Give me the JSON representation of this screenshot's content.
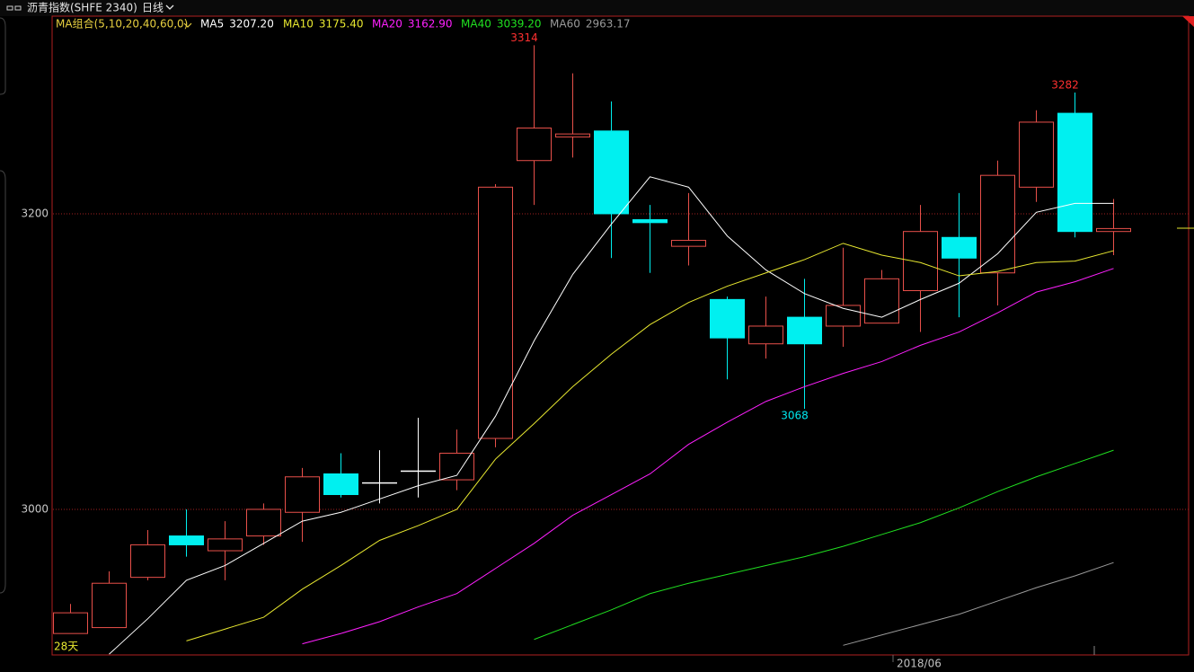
{
  "chart_data": {
    "type": "candlestick",
    "title": "沥青指数(SHFE 2340)",
    "period": "日线",
    "indicator": "MA组合(5,10,20,40,60,0)",
    "footnote": "28天",
    "categories": [
      null,
      null,
      null,
      null,
      null,
      null,
      null,
      null,
      null,
      null,
      null,
      null,
      null,
      null,
      null,
      null,
      null,
      null,
      null,
      null,
      null,
      null,
      "2018/06",
      null,
      null,
      null,
      null,
      null
    ],
    "open": [
      2916,
      2920,
      2954,
      2982,
      2972,
      2982,
      2998,
      3024,
      3018,
      3026,
      3020,
      3048,
      3236,
      3252,
      3256,
      3196,
      3178,
      3142,
      3112,
      3130,
      3124,
      3126,
      3148,
      3184,
      3160,
      3218,
      3268,
      3188
    ],
    "high": [
      2936,
      2958,
      2986,
      3000,
      2992,
      3004,
      3028,
      3038,
      3040,
      3062,
      3054,
      3220,
      3314,
      3295,
      3276,
      3206,
      3214,
      3144,
      3144,
      3156,
      3177,
      3162,
      3206,
      3214,
      3236,
      3270,
      3282,
      3210
    ],
    "low": [
      2916,
      2920,
      2952,
      2968,
      2952,
      2976,
      2978,
      3008,
      3004,
      3008,
      3013,
      3042,
      3206,
      3238,
      3170,
      3160,
      3165,
      3088,
      3102,
      3068,
      3110,
      3126,
      3120,
      3130,
      3138,
      3208,
      3184,
      3172
    ],
    "close": [
      2930,
      2950,
      2976,
      2976,
      2980,
      3000,
      3022,
      3010,
      3018,
      3026,
      3038,
      3218,
      3258,
      3254,
      3200,
      3194,
      3182,
      3116,
      3124,
      3112,
      3138,
      3156,
      3188,
      3170,
      3226,
      3262,
      3188,
      3190
    ],
    "up_color": "#e8504a",
    "down_color": "#00f0f0",
    "flat_color": "#ffffff",
    "ylim": [
      2901.5,
      3333.7
    ],
    "yticks": [
      3000,
      3200
    ],
    "grid": true,
    "series": [
      {
        "name": "MA5",
        "legend_label": "3207.20",
        "color": "#ffffff",
        "values": [
          null,
          2902,
          2926,
          2952,
          2962,
          2977,
          2992,
          2998,
          3007,
          3016,
          3023,
          3063,
          3114,
          3159,
          3193,
          3225,
          3218,
          3185,
          3162,
          3146,
          3136,
          3130,
          3142,
          3153,
          3173,
          3201,
          3207,
          3207
        ]
      },
      {
        "name": "MA10",
        "legend_label": "3175.40",
        "color": "#e8e830",
        "values": [
          null,
          null,
          null,
          2911,
          2919,
          2927,
          2946,
          2962,
          2979,
          2989,
          3000,
          3034,
          3058,
          3083,
          3105,
          3125,
          3140,
          3151,
          3160,
          3169,
          3180,
          3172,
          3167,
          3158,
          3161,
          3167,
          3168,
          3175
        ]
      },
      {
        "name": "MA20",
        "legend_label": "3162.90",
        "color": "#ff20ff",
        "values": [
          null,
          null,
          null,
          null,
          null,
          null,
          2909,
          2916,
          2924,
          2934,
          2943,
          2960,
          2977,
          2996,
          3010,
          3024,
          3044,
          3059,
          3073,
          3083,
          3092,
          3100,
          3111,
          3120,
          3133,
          3147,
          3154,
          3163
        ]
      },
      {
        "name": "MA40",
        "legend_label": "3039.20",
        "color": "#20e020",
        "values": [
          null,
          null,
          null,
          null,
          null,
          null,
          null,
          null,
          null,
          null,
          null,
          null,
          2912,
          2922,
          2932,
          2943,
          2950,
          2956,
          2962,
          2968,
          2975,
          2983,
          2991,
          3001,
          3012,
          3022,
          3031,
          3040
        ]
      },
      {
        "name": "MA60",
        "legend_label": "2963.17",
        "color": "#9a9a9a",
        "values": [
          null,
          null,
          null,
          null,
          null,
          null,
          null,
          null,
          null,
          null,
          null,
          null,
          null,
          null,
          null,
          null,
          null,
          null,
          null,
          null,
          2908,
          2915,
          2922,
          2929,
          2938,
          2947,
          2955,
          2964
        ]
      }
    ],
    "annotations": [
      {
        "value": 3314
      },
      {
        "value": 3282
      },
      {
        "value": 3068
      }
    ]
  }
}
